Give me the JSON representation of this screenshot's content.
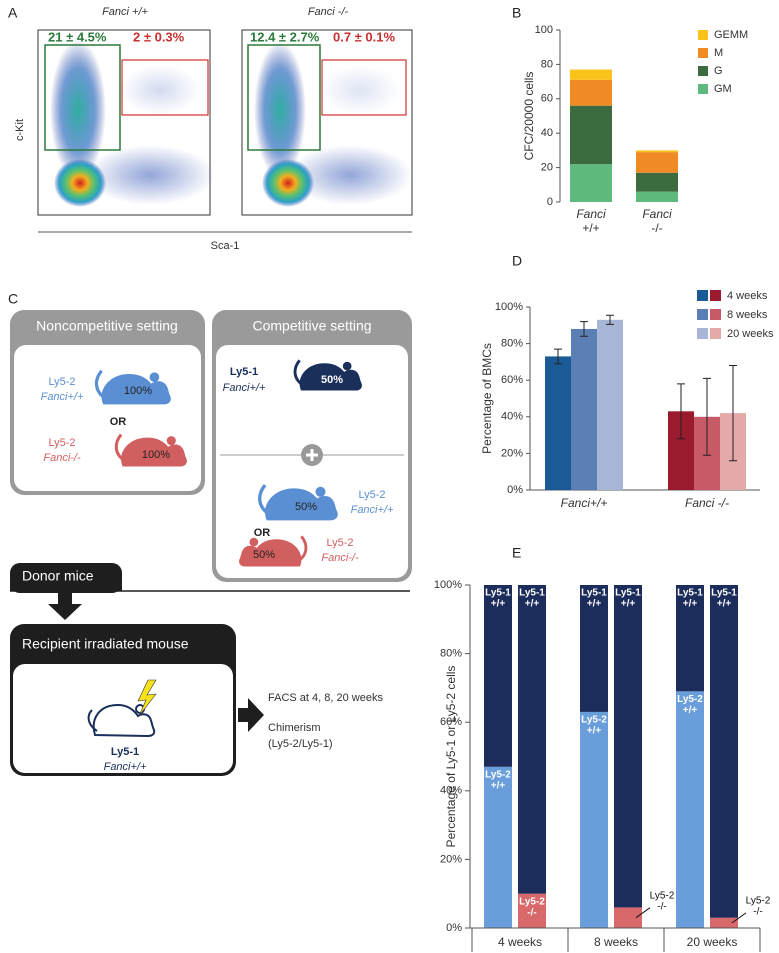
{
  "panel_letters": [
    "A",
    "B",
    "C",
    "D",
    "E"
  ],
  "facs": {
    "x_label": "Sca-1",
    "y_label": "c-Kit",
    "plots": [
      {
        "title": "Fanci +/+",
        "gates": [
          "21 ± 4.5%",
          "2 ± 0.3%"
        ]
      },
      {
        "title": "Fanci -/-",
        "gates": [
          "12.4 ± 2.7%",
          "0.7 ± 0.1%"
        ]
      }
    ]
  },
  "diagram": {
    "noncompetitive": {
      "title": "Noncompetitive setting",
      "or": "OR",
      "donors": [
        {
          "strain": "Ly5-2",
          "genotype": "Fanci+/+",
          "share": "100%"
        },
        {
          "strain": "Ly5-2",
          "genotype": "Fanci-/-",
          "share": "100%"
        }
      ]
    },
    "competitive": {
      "title": "Competitive setting",
      "or": "OR",
      "reference": {
        "strain": "Ly5-1",
        "genotype": "Fanci+/+",
        "share": "50%"
      },
      "donors": [
        {
          "strain": "Ly5-2",
          "genotype": "Fanci+/+",
          "share": "50%"
        },
        {
          "strain": "Ly5-2",
          "genotype": "Fanci-/-",
          "share": "50%"
        }
      ]
    },
    "donor_label": "Donor mice",
    "recipient": {
      "title": "Recipient irradiated mouse",
      "strain": "Ly5-1",
      "genotype": "Fanci+/+"
    },
    "readout": [
      "FACS at 4, 8, 20 weeks",
      "Chimerism",
      "(Ly5-2/Ly5-1)"
    ]
  },
  "chart_data": [
    {
      "type": "stacked_bar",
      "y_label": "CFC/20000 cells",
      "categories": [
        [
          "Fanci",
          "+/+"
        ],
        [
          "Fanci",
          "-/-"
        ]
      ],
      "series": [
        {
          "name": "GM",
          "color": "#5fba7d",
          "values": [
            22,
            6
          ]
        },
        {
          "name": "G",
          "color": "#3d6b40",
          "values": [
            34,
            11
          ]
        },
        {
          "name": "M",
          "color": "#f08a24",
          "values": [
            15,
            12
          ]
        },
        {
          "name": "GEMM",
          "color": "#f9c31c",
          "values": [
            6,
            1
          ]
        }
      ],
      "ylim": [
        0,
        100
      ],
      "yticks": [
        0,
        20,
        40,
        60,
        80,
        100
      ],
      "legend": "upper right"
    },
    {
      "type": "grouped_bar",
      "y_label": "Percentage of BMCs",
      "categories": [
        "Fanci+/+",
        "Fanci -/-"
      ],
      "series": [
        {
          "name": "4 weeks",
          "colors": [
            "#1a5a96",
            "#9a1b2e"
          ],
          "values": [
            73,
            43
          ],
          "errors": [
            4,
            15
          ]
        },
        {
          "name": "8 weeks",
          "colors": [
            "#5b7fb5",
            "#c85a68"
          ],
          "values": [
            88,
            40
          ],
          "errors": [
            4,
            21
          ]
        },
        {
          "name": "20 weeks",
          "colors": [
            "#a7b5d6",
            "#e4a9a8"
          ],
          "values": [
            93,
            42
          ],
          "errors": [
            2.5,
            26
          ]
        }
      ],
      "ylim": [
        0,
        100
      ],
      "yticks": [
        {
          "value": 0,
          "label": "0%"
        },
        {
          "value": 20,
          "label": "20%"
        },
        {
          "value": 40,
          "label": "40%"
        },
        {
          "value": 60,
          "label": "60%"
        },
        {
          "value": 80,
          "label": "80%"
        },
        {
          "value": 100,
          "label": "100%"
        }
      ],
      "legend": "upper right"
    },
    {
      "type": "stacked_percent_bar",
      "y_label": "Percentage of Ly5-1 or Ly5-2 cells",
      "groups": [
        "4 weeks",
        "8 weeks",
        "20 weeks"
      ],
      "categories": [
        "+/+",
        "-/-",
        "+/+",
        "-/-",
        "+/+",
        "-/-"
      ],
      "series": [
        {
          "name": "Ly5-2",
          "colors": [
            "#6a9edb",
            "#d9686a",
            "#6a9edb",
            "#d9686a",
            "#6a9edb",
            "#d9686a"
          ],
          "values": [
            47,
            10,
            63,
            6,
            69,
            3
          ],
          "segment_labels": [
            "+/+",
            "-/-",
            "+/+",
            "-/-",
            "+/+",
            "-/-"
          ]
        },
        {
          "name": "Ly5-1",
          "color": "#1c2d5c",
          "values": [
            53,
            90,
            37,
            94,
            31,
            97
          ],
          "segment_labels": [
            "+/+",
            "+/+",
            "+/+",
            "+/+",
            "+/+",
            "+/+"
          ]
        }
      ],
      "ylim": [
        0,
        100
      ],
      "yticks": [
        {
          "value": 0,
          "label": "0%"
        },
        {
          "value": 20,
          "label": "20%"
        },
        {
          "value": 40,
          "label": "40%"
        },
        {
          "value": 60,
          "label": "60%"
        },
        {
          "value": 80,
          "label": "80%"
        },
        {
          "value": 100,
          "label": "100%"
        }
      ]
    }
  ]
}
